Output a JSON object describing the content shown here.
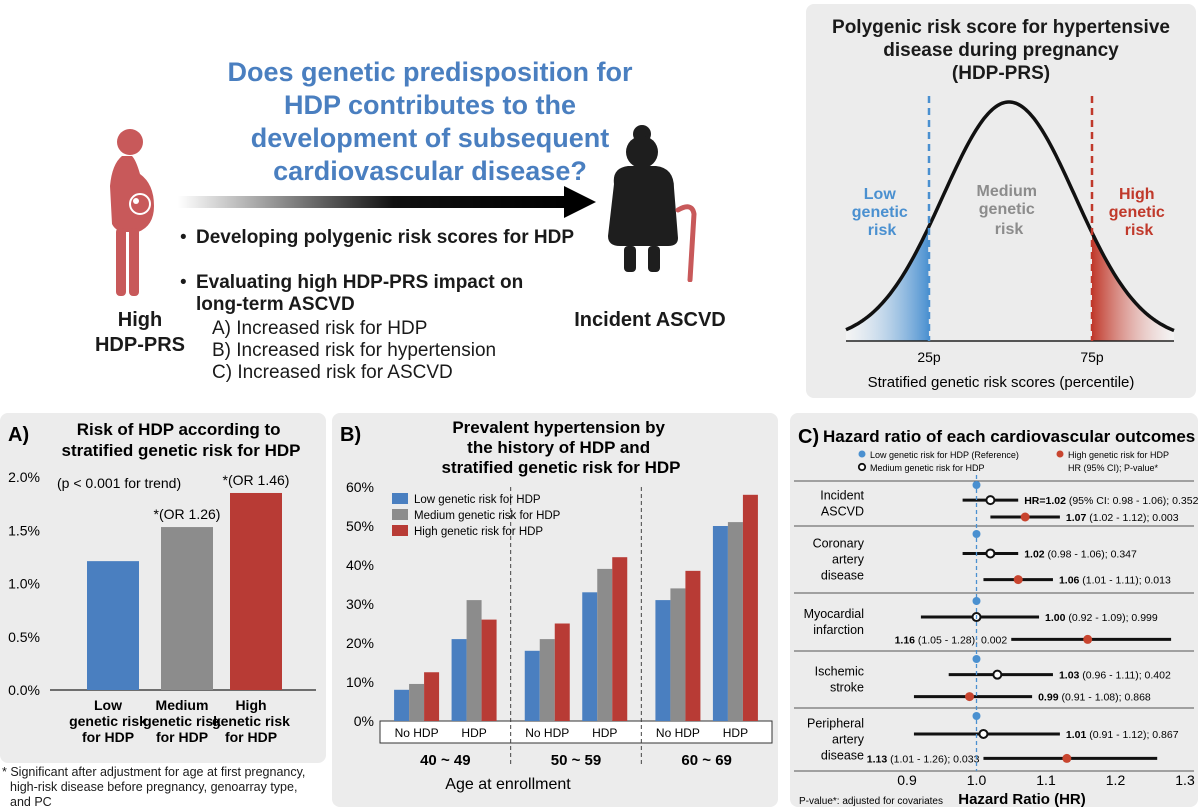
{
  "intro": {
    "question": [
      "Does genetic predisposition for",
      "HDP contributes to the",
      "development of subsequent",
      "cardiovascular disease?"
    ],
    "left_label": [
      "High",
      "HDP-PRS"
    ],
    "right_label": "Incident ASCVD",
    "bullets": [
      "Developing polygenic risk scores for HDP",
      "Evaluating high HDP-PRS impact on",
      "long-term ASCVD"
    ],
    "sub_items": [
      "A) Increased risk for HDP",
      "B) Increased risk for hypertension",
      "C) Increased risk for ASCVD"
    ],
    "colors": {
      "accent_blue": "#4a7fc0",
      "figure_red": "#c8595a",
      "figure_dark": "#1e1e1e"
    },
    "icons": [
      "pregnant-woman-icon",
      "elderly-woman-icon",
      "gradient-arrow-icon"
    ]
  },
  "prs_panel": {
    "title": [
      "Polygenic risk score for hypertensive",
      "disease during pregnancy",
      "(HDP-PRS)"
    ],
    "low": [
      "Low",
      "genetic",
      "risk"
    ],
    "medium": [
      "Medium",
      "genetic",
      "risk"
    ],
    "high": [
      "High",
      "genetic",
      "risk"
    ],
    "tick_25": "25p",
    "tick_75": "75p",
    "xlabel": "Stratified genetic risk scores (percentile)",
    "colors": {
      "low": "#4a90d0",
      "medium": "#8c8c8c",
      "high": "#c0392b"
    }
  },
  "footnote": [
    "* Significant after adjustment for age at first pregnancy,",
    "high-risk disease before pregnancy, genoarray type,",
    "and PC"
  ],
  "chart_data": [
    {
      "panel_label": "A)",
      "type": "bar",
      "title": [
        "Risk of HDP according to",
        "stratified genetic risk for HDP"
      ],
      "categories": [
        [
          "Low",
          "genetic risk",
          "for HDP"
        ],
        [
          "Medium",
          "genetic risk",
          "for HDP"
        ],
        [
          "High",
          "genetic risk",
          "for HDP"
        ]
      ],
      "values": [
        1.21,
        1.53,
        1.85
      ],
      "colors": [
        "#4a7fc0",
        "#8c8c8c",
        "#b83b35"
      ],
      "bar_labels": [
        "",
        "*(OR 1.26)",
        "*(OR 1.46)"
      ],
      "annotation": "(p < 0.001 for trend)",
      "ylim": [
        0,
        2
      ],
      "yticks": [
        "0.0%",
        "0.5%",
        "1.0%",
        "1.5%",
        "2.0%"
      ],
      "ytick_values": [
        0,
        0.5,
        1,
        1.5,
        2
      ]
    },
    {
      "panel_label": "B)",
      "type": "bar",
      "title": [
        "Prevalent hypertension by",
        "the history of HDP and",
        "stratified genetic risk for HDP"
      ],
      "categories": [
        "No HDP",
        "HDP",
        "No HDP",
        "HDP",
        "No HDP",
        "HDP"
      ],
      "groups": [
        "40 ~ 49",
        "50 ~ 59",
        "60 ~ 69"
      ],
      "series": [
        {
          "name": "Low genetic risk for HDP",
          "color": "#4a7fc0",
          "values": [
            8,
            21,
            18,
            33,
            31,
            50
          ]
        },
        {
          "name": "Medium genetic risk for HDP",
          "color": "#8c8c8c",
          "values": [
            9.5,
            31,
            21,
            39,
            34,
            51
          ]
        },
        {
          "name": "High genetic risk for HDP",
          "color": "#b83b35",
          "values": [
            12.5,
            26,
            25,
            42,
            38.5,
            58
          ]
        }
      ],
      "xlabel": "Age at enrollment",
      "ylim": [
        0,
        60
      ],
      "yticks": [
        "0%",
        "10%",
        "20%",
        "30%",
        "40%",
        "50%",
        "60%"
      ],
      "ytick_values": [
        0,
        10,
        20,
        30,
        40,
        50,
        60
      ],
      "legend": "top-left"
    },
    {
      "panel_label": "C)",
      "type": "scatter",
      "title": "Hazard ratio of each cardiovascular outcomes",
      "legend": {
        "ref": "Low genetic risk for HDP (Reference)",
        "medium": "Medium genetic risk for HDP",
        "high": "High genetic risk for HDP",
        "high_note": "HR (95% CI); P-value*"
      },
      "outcomes": [
        {
          "name": [
            "Incident",
            "ASCVD"
          ],
          "medium": {
            "hr": 1.02,
            "lo": 0.98,
            "hi": 1.06,
            "bold": "HR=1.02",
            "rest": " (95% CI: 0.98 - 1.06); 0.352"
          },
          "high": {
            "hr": 1.07,
            "lo": 1.02,
            "hi": 1.12,
            "bold": "1.07",
            "rest": " (1.02 - 1.12); 0.003"
          }
        },
        {
          "name": [
            "Coronary",
            "artery",
            "disease"
          ],
          "medium": {
            "hr": 1.02,
            "lo": 0.98,
            "hi": 1.06,
            "bold": "1.02",
            "rest": " (0.98 - 1.06); 0.347"
          },
          "high": {
            "hr": 1.06,
            "lo": 1.01,
            "hi": 1.11,
            "bold": "1.06",
            "rest": " (1.01 - 1.11); 0.013"
          }
        },
        {
          "name": [
            "Myocardial",
            "infarction"
          ],
          "medium": {
            "hr": 1.0,
            "lo": 0.92,
            "hi": 1.09,
            "bold": "1.00",
            "rest": " (0.92 - 1.09); 0.999"
          },
          "high": {
            "hr": 1.16,
            "lo": 1.05,
            "hi": 1.28,
            "bold": "1.16",
            "rest": " (1.05 - 1.28); 0.002"
          }
        },
        {
          "name": [
            "Ischemic",
            "stroke"
          ],
          "medium": {
            "hr": 1.03,
            "lo": 0.96,
            "hi": 1.11,
            "bold": "1.03",
            "rest": " (0.96 - 1.11); 0.402"
          },
          "high": {
            "hr": 0.99,
            "lo": 0.91,
            "hi": 1.08,
            "bold": "0.99",
            "rest": " (0.91 - 1.08); 0.868"
          }
        },
        {
          "name": [
            "Peripheral",
            "artery",
            "disease"
          ],
          "medium": {
            "hr": 1.01,
            "lo": 0.91,
            "hi": 1.12,
            "bold": "1.01",
            "rest": " (0.91 - 1.12); 0.867"
          },
          "high": {
            "hr": 1.13,
            "lo": 1.01,
            "hi": 1.26,
            "bold": "1.13",
            "rest": " (1.01 - 1.26); 0.033"
          }
        }
      ],
      "xlim": [
        0.9,
        1.3
      ],
      "xticks": [
        "0.9",
        "1.0",
        "1.1",
        "1.2",
        "1.3"
      ],
      "xtick_values": [
        0.9,
        1.0,
        1.1,
        1.2,
        1.3
      ],
      "xlabel": "Hazard Ratio (HR)",
      "note": "P-value*: adjusted for covariates",
      "colors": {
        "ref": "#4a90d0",
        "high": "#c8452f"
      }
    }
  ]
}
